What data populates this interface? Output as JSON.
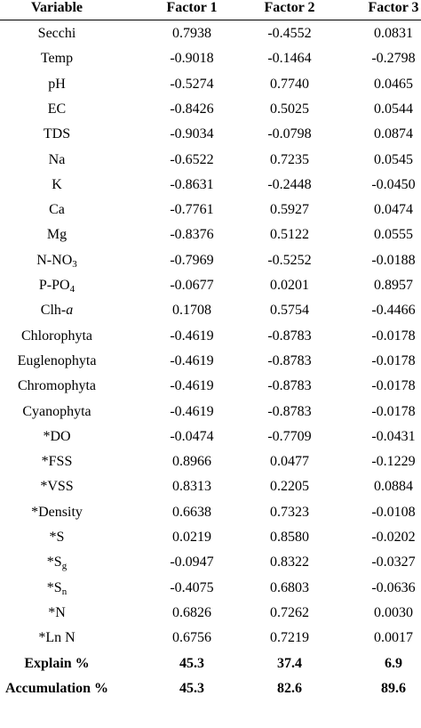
{
  "table": {
    "columns": [
      "Variable",
      "Factor 1",
      "Factor 2",
      "Factor 3"
    ],
    "rows": [
      {
        "variable": "Secchi",
        "f1": "0.7938",
        "f2": "-0.4552",
        "f3": "0.0831"
      },
      {
        "variable": "Temp",
        "f1": "-0.9018",
        "f2": "-0.1464",
        "f3": "-0.2798"
      },
      {
        "variable": "pH",
        "f1": "-0.5274",
        "f2": "0.7740",
        "f3": "0.0465"
      },
      {
        "variable": "EC",
        "f1": "-0.8426",
        "f2": "0.5025",
        "f3": "0.0544"
      },
      {
        "variable": "TDS",
        "f1": "-0.9034",
        "f2": "-0.0798",
        "f3": "0.0874"
      },
      {
        "variable": "Na",
        "f1": "-0.6522",
        "f2": "0.7235",
        "f3": "0.0545"
      },
      {
        "variable": "K",
        "f1": "-0.8631",
        "f2": "-0.2448",
        "f3": "-0.0450"
      },
      {
        "variable": "Ca",
        "f1": "-0.7761",
        "f2": "0.5927",
        "f3": "0.0474"
      },
      {
        "variable": "Mg",
        "f1": "-0.8376",
        "f2": "0.5122",
        "f3": "0.0555"
      },
      {
        "variable": "N-NO",
        "sub": "3",
        "f1": "-0.7969",
        "f2": "-0.5252",
        "f3": "-0.0188"
      },
      {
        "variable": "P-PO",
        "sub": "4",
        "f1": "-0.0677",
        "f2": "0.0201",
        "f3": "0.8957"
      },
      {
        "variable": "Clh-",
        "ital": "a",
        "f1": "0.1708",
        "f2": "0.5754",
        "f3": "-0.4466"
      },
      {
        "variable": "Chlorophyta",
        "f1": "-0.4619",
        "f2": "-0.8783",
        "f3": "-0.0178"
      },
      {
        "variable": "Euglenophyta",
        "f1": "-0.4619",
        "f2": "-0.8783",
        "f3": "-0.0178"
      },
      {
        "variable": "Chromophyta",
        "f1": "-0.4619",
        "f2": "-0.8783",
        "f3": "-0.0178"
      },
      {
        "variable": "Cyanophyta",
        "f1": "-0.4619",
        "f2": "-0.8783",
        "f3": "-0.0178"
      },
      {
        "variable": "*DO",
        "f1": "-0.0474",
        "f2": "-0.7709",
        "f3": "-0.0431"
      },
      {
        "variable": "*FSS",
        "f1": "0.8966",
        "f2": "0.0477",
        "f3": "-0.1229"
      },
      {
        "variable": "*VSS",
        "f1": "0.8313",
        "f2": "0.2205",
        "f3": "0.0884"
      },
      {
        "variable": "*Density",
        "f1": "0.6638",
        "f2": "0.7323",
        "f3": "-0.0108"
      },
      {
        "variable": "*S",
        "f1": "0.0219",
        "f2": "0.8580",
        "f3": "-0.0202"
      },
      {
        "variable": "*S",
        "sub": "g",
        "f1": "-0.0947",
        "f2": "0.8322",
        "f3": "-0.0327"
      },
      {
        "variable": "*S",
        "sub": "n",
        "f1": "-0.4075",
        "f2": "0.6803",
        "f3": "-0.0636"
      },
      {
        "variable": "*N",
        "f1": "0.6826",
        "f2": "0.7262",
        "f3": "0.0030"
      },
      {
        "variable": "*Ln N",
        "f1": "0.6756",
        "f2": "0.7219",
        "f3": "0.0017"
      },
      {
        "variable": "Explain %",
        "f1": "45.3",
        "f2": "37.4",
        "f3": "6.9",
        "bold": true
      },
      {
        "variable": "Accumulation %",
        "f1": "45.3",
        "f2": "82.6",
        "f3": "89.6",
        "bold": true
      }
    ]
  }
}
